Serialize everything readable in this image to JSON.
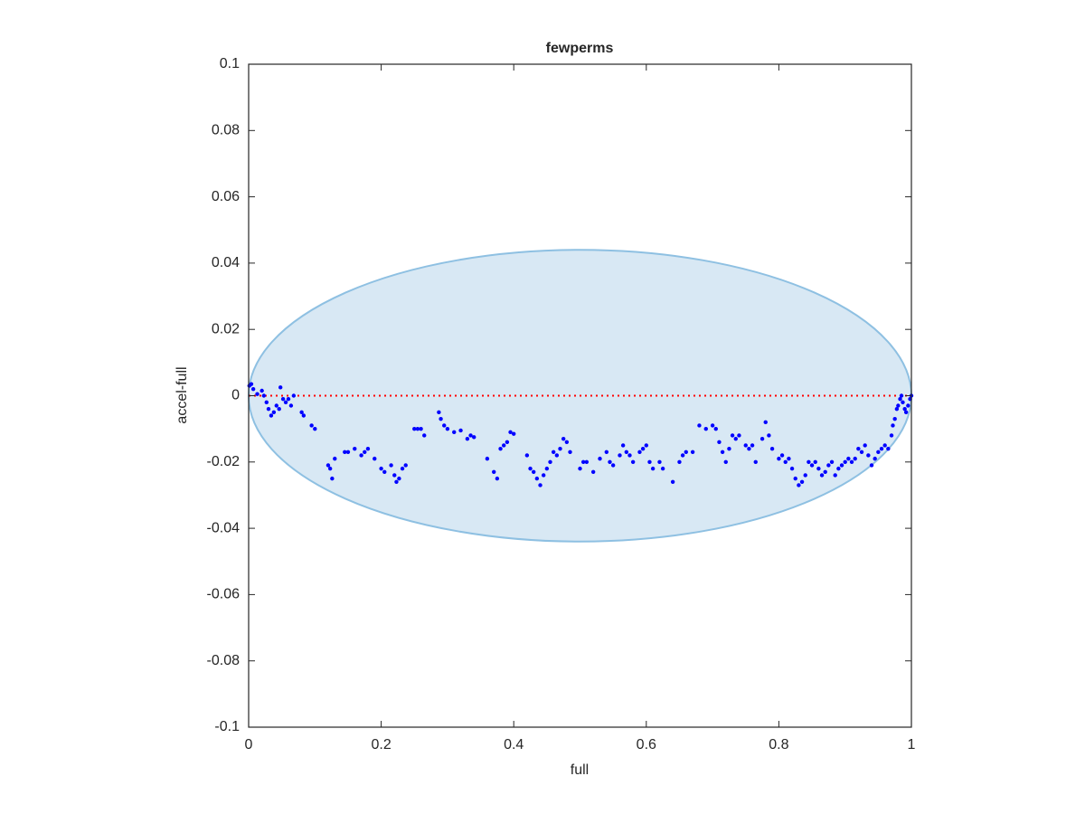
{
  "chart_data": {
    "type": "scatter",
    "title": "fewperms",
    "xlabel": "full",
    "ylabel": "accel-full",
    "xlim": [
      0,
      1
    ],
    "ylim": [
      -0.1,
      0.1
    ],
    "xticks": [
      0,
      0.2,
      0.4,
      0.6,
      0.8,
      1
    ],
    "yticks": [
      -0.1,
      -0.08,
      -0.06,
      -0.04,
      -0.02,
      0,
      0.02,
      0.04,
      0.06,
      0.08,
      0.1
    ],
    "color": "#0000ff",
    "reference_line": {
      "y": 0,
      "color": "#ff0000"
    },
    "ellipse": {
      "center": [
        0.5,
        0
      ],
      "radii": [
        0.5,
        0.044
      ],
      "fill": "#d8e8f4",
      "edge": "#8ec0e2"
    },
    "x": [
      0.001,
      0.004,
      0.007,
      0.013,
      0.02,
      0.023,
      0.027,
      0.03,
      0.034,
      0.038,
      0.042,
      0.046,
      0.048,
      0.052,
      0.056,
      0.06,
      0.064,
      0.068,
      0.08,
      0.083,
      0.095,
      0.1,
      0.12,
      0.123,
      0.126,
      0.13,
      0.145,
      0.15,
      0.16,
      0.17,
      0.175,
      0.18,
      0.19,
      0.2,
      0.205,
      0.215,
      0.22,
      0.223,
      0.227,
      0.232,
      0.237,
      0.25,
      0.255,
      0.26,
      0.265,
      0.287,
      0.29,
      0.295,
      0.3,
      0.31,
      0.32,
      0.33,
      0.335,
      0.34,
      0.36,
      0.37,
      0.375,
      0.38,
      0.385,
      0.39,
      0.395,
      0.4,
      0.42,
      0.425,
      0.43,
      0.435,
      0.44,
      0.445,
      0.45,
      0.455,
      0.46,
      0.465,
      0.47,
      0.475,
      0.48,
      0.485,
      0.5,
      0.505,
      0.51,
      0.52,
      0.53,
      0.54,
      0.545,
      0.55,
      0.56,
      0.565,
      0.57,
      0.575,
      0.58,
      0.59,
      0.595,
      0.6,
      0.605,
      0.61,
      0.62,
      0.625,
      0.64,
      0.65,
      0.655,
      0.66,
      0.67,
      0.68,
      0.69,
      0.7,
      0.705,
      0.71,
      0.715,
      0.72,
      0.725,
      0.73,
      0.735,
      0.74,
      0.75,
      0.755,
      0.76,
      0.765,
      0.775,
      0.78,
      0.785,
      0.79,
      0.8,
      0.805,
      0.81,
      0.815,
      0.82,
      0.825,
      0.83,
      0.835,
      0.84,
      0.845,
      0.85,
      0.855,
      0.86,
      0.865,
      0.87,
      0.875,
      0.88,
      0.885,
      0.89,
      0.895,
      0.9,
      0.905,
      0.91,
      0.915,
      0.92,
      0.925,
      0.93,
      0.935,
      0.94,
      0.945,
      0.95,
      0.955,
      0.96,
      0.965,
      0.97,
      0.972,
      0.975,
      0.978,
      0.98,
      0.983,
      0.985,
      0.987,
      0.99,
      0.992,
      0.995,
      0.998,
      1.0
    ],
    "values": [
      0.003,
      0.0035,
      0.002,
      0.0005,
      0.0015,
      0.0,
      -0.002,
      -0.004,
      -0.006,
      -0.005,
      -0.003,
      -0.004,
      0.0025,
      -0.001,
      -0.002,
      -0.001,
      -0.003,
      0.0,
      -0.005,
      -0.006,
      -0.009,
      -0.01,
      -0.021,
      -0.022,
      -0.025,
      -0.019,
      -0.017,
      -0.017,
      -0.016,
      -0.018,
      -0.017,
      -0.016,
      -0.019,
      -0.022,
      -0.023,
      -0.021,
      -0.024,
      -0.026,
      -0.025,
      -0.022,
      -0.021,
      -0.01,
      -0.01,
      -0.01,
      -0.012,
      -0.005,
      -0.007,
      -0.009,
      -0.01,
      -0.011,
      -0.0105,
      -0.013,
      -0.012,
      -0.0125,
      -0.019,
      -0.023,
      -0.025,
      -0.016,
      -0.015,
      -0.014,
      -0.011,
      -0.0115,
      -0.018,
      -0.022,
      -0.023,
      -0.025,
      -0.027,
      -0.024,
      -0.022,
      -0.02,
      -0.017,
      -0.018,
      -0.016,
      -0.013,
      -0.014,
      -0.017,
      -0.022,
      -0.02,
      -0.02,
      -0.023,
      -0.019,
      -0.017,
      -0.02,
      -0.021,
      -0.018,
      -0.015,
      -0.017,
      -0.018,
      -0.02,
      -0.017,
      -0.016,
      -0.015,
      -0.02,
      -0.022,
      -0.02,
      -0.022,
      -0.026,
      -0.02,
      -0.018,
      -0.017,
      -0.017,
      -0.009,
      -0.01,
      -0.009,
      -0.01,
      -0.014,
      -0.017,
      -0.02,
      -0.016,
      -0.012,
      -0.013,
      -0.012,
      -0.015,
      -0.016,
      -0.015,
      -0.02,
      -0.013,
      -0.008,
      -0.012,
      -0.016,
      -0.019,
      -0.018,
      -0.02,
      -0.019,
      -0.022,
      -0.025,
      -0.027,
      -0.026,
      -0.024,
      -0.02,
      -0.021,
      -0.02,
      -0.022,
      -0.024,
      -0.023,
      -0.021,
      -0.02,
      -0.024,
      -0.022,
      -0.021,
      -0.02,
      -0.019,
      -0.02,
      -0.019,
      -0.016,
      -0.017,
      -0.015,
      -0.018,
      -0.021,
      -0.019,
      -0.017,
      -0.016,
      -0.015,
      -0.016,
      -0.012,
      -0.009,
      -0.007,
      -0.004,
      -0.003,
      -0.001,
      0.0,
      -0.002,
      -0.004,
      -0.005,
      -0.003,
      -0.001,
      0.0
    ]
  }
}
